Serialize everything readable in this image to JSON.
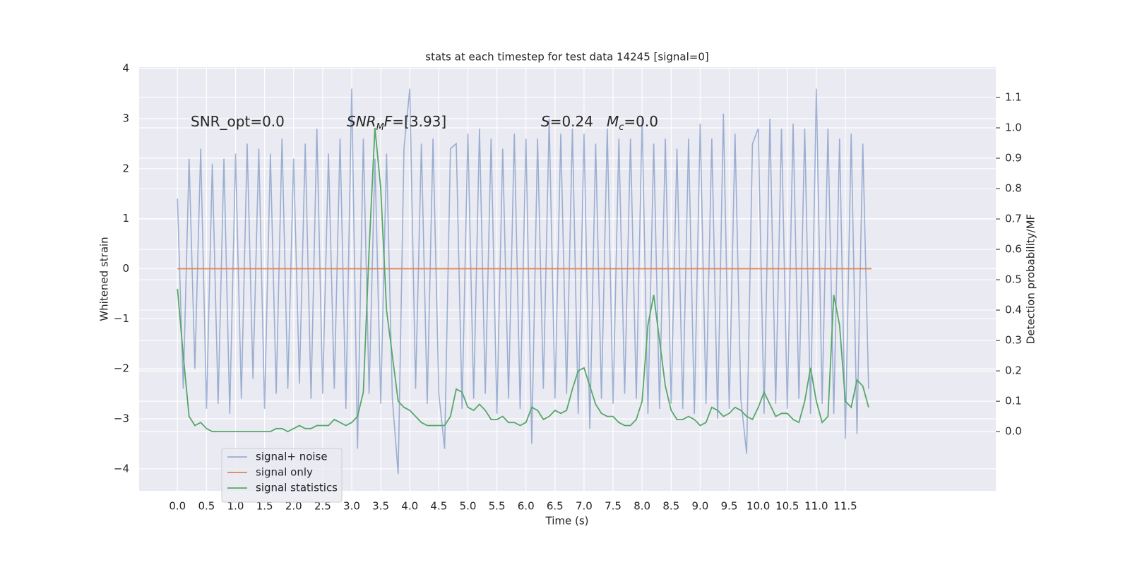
{
  "chart_data": {
    "type": "line",
    "title": "stats at each timestep for test data 14245 [signal=0]",
    "x_label": "Time (s)",
    "y_label": "Whitened strain",
    "y2_label": "Detection probability/MF",
    "annotations": [
      {
        "parts": [
          {
            "text": "SNR_opt=0.0"
          }
        ]
      },
      {
        "parts": [
          {
            "text": "SNR",
            "italic": true
          },
          {
            "text": "M",
            "italic": true,
            "sub": true
          },
          {
            "text": "F",
            "italic": true
          },
          {
            "text": "=[3.93]"
          }
        ]
      },
      {
        "parts": [
          {
            "text": "S",
            "italic": true
          },
          {
            "text": "=0.24"
          }
        ]
      },
      {
        "parts": [
          {
            "text": "M",
            "italic": true
          },
          {
            "text": "c",
            "italic": true,
            "sub": true
          },
          {
            "text": "=0.0"
          }
        ]
      }
    ],
    "xlim": [
      -0.66,
      14.09
    ],
    "ylim": [
      -4.44,
      4.03
    ],
    "y2lim": [
      -0.195,
      1.2
    ],
    "xticks": [
      {
        "value": 0,
        "label": "0.0"
      },
      {
        "value": 0.5,
        "label": "0.5"
      },
      {
        "value": 1,
        "label": "1.0"
      },
      {
        "value": 1.5,
        "label": "1.5"
      },
      {
        "value": 2,
        "label": "2.0"
      },
      {
        "value": 2.5,
        "label": "2.5"
      },
      {
        "value": 3,
        "label": "3.0"
      },
      {
        "value": 3.5,
        "label": "3.5"
      },
      {
        "value": 4,
        "label": "4.0"
      },
      {
        "value": 4.5,
        "label": "4.5"
      },
      {
        "value": 5,
        "label": "5.0"
      },
      {
        "value": 5.5,
        "label": "5.5"
      },
      {
        "value": 6,
        "label": "6.0"
      },
      {
        "value": 6.5,
        "label": "6.5"
      },
      {
        "value": 7,
        "label": "7.0"
      },
      {
        "value": 7.5,
        "label": "7.5"
      },
      {
        "value": 8,
        "label": "8.0"
      },
      {
        "value": 8.5,
        "label": "8.5"
      },
      {
        "value": 9,
        "label": "9.0"
      },
      {
        "value": 9.5,
        "label": "9.5"
      },
      {
        "value": 10,
        "label": "10.0"
      },
      {
        "value": 10.5,
        "label": "10.5"
      },
      {
        "value": 11,
        "label": "11.0"
      },
      {
        "value": 11.5,
        "label": "11.5"
      }
    ],
    "yticks": [
      {
        "value": -4,
        "label": "−4"
      },
      {
        "value": -3,
        "label": "−3"
      },
      {
        "value": -2,
        "label": "−2"
      },
      {
        "value": -1,
        "label": "−1"
      },
      0,
      1,
      2,
      3,
      4
    ],
    "y2ticks": [
      {
        "value": 0,
        "label": "0.0"
      },
      {
        "value": 0.1,
        "label": "0.1"
      },
      {
        "value": 0.2,
        "label": "0.2"
      },
      {
        "value": 0.3,
        "label": "0.3"
      },
      {
        "value": 0.4,
        "label": "0.4"
      },
      {
        "value": 0.5,
        "label": "0.5"
      },
      {
        "value": 0.6,
        "label": "0.6"
      },
      {
        "value": 0.7,
        "label": "0.7"
      },
      {
        "value": 0.8,
        "label": "0.8"
      },
      {
        "value": 0.9,
        "label": "0.9"
      },
      {
        "value": 1,
        "label": "1.0"
      },
      {
        "value": 1.1,
        "label": "1.1"
      }
    ],
    "grid": true,
    "legend": "lower left",
    "series": [
      {
        "name": "signal+ noise",
        "color": "#4c72b0",
        "opacity": 0.5,
        "x": [
          0,
          0.1,
          0.2,
          0.3,
          0.4,
          0.5,
          0.6,
          0.7,
          0.8,
          0.9,
          1,
          1.1,
          1.2,
          1.3,
          1.4,
          1.5,
          1.6,
          1.7,
          1.8,
          1.9,
          2,
          2.1,
          2.2,
          2.3,
          2.4,
          2.5,
          2.6,
          2.7,
          2.8,
          2.9,
          3,
          3.1,
          3.2,
          3.3,
          3.4,
          3.5,
          3.6,
          3.7,
          3.8,
          3.9,
          4,
          4.1,
          4.2,
          4.3,
          4.4,
          4.5,
          4.6,
          4.7,
          4.8,
          4.9,
          5,
          5.1,
          5.2,
          5.3,
          5.4,
          5.5,
          5.6,
          5.7,
          5.8,
          5.9,
          6,
          6.1,
          6.2,
          6.3,
          6.4,
          6.5,
          6.6,
          6.7,
          6.8,
          6.9,
          7,
          7.1,
          7.2,
          7.3,
          7.4,
          7.5,
          7.6,
          7.7,
          7.8,
          7.9,
          8,
          8.1,
          8.2,
          8.3,
          8.4,
          8.5,
          8.6,
          8.7,
          8.8,
          8.9,
          9,
          9.1,
          9.2,
          9.3,
          9.4,
          9.5,
          9.6,
          9.7,
          9.8,
          9.9,
          10,
          10.1,
          10.2,
          10.3,
          10.4,
          10.5,
          10.6,
          10.7,
          10.8,
          10.9,
          11,
          11.1,
          11.2,
          11.3,
          11.4,
          11.5,
          11.6,
          11.7,
          11.8,
          11.9
        ],
        "values": [
          1.4,
          -2.4,
          2.2,
          -2.0,
          2.4,
          -2.8,
          2.1,
          -2.7,
          2.2,
          -2.9,
          2.3,
          -2.6,
          2.5,
          -2.2,
          2.4,
          -2.8,
          2.3,
          -2.5,
          2.6,
          -2.4,
          2.2,
          -2.3,
          2.5,
          -2.6,
          2.8,
          -2.5,
          2.3,
          -2.4,
          2.6,
          -2.8,
          3.6,
          -3.6,
          2.6,
          -2.5,
          2.2,
          -2.7,
          2.3,
          -2.6,
          -4.1,
          2.4,
          3.6,
          -2.4,
          2.5,
          -2.7,
          2.6,
          -2.5,
          -3.6,
          2.4,
          2.5,
          -2.8,
          2.7,
          -2.6,
          2.8,
          -2.5,
          2.6,
          -2.9,
          2.4,
          -2.6,
          2.7,
          -2.8,
          2.6,
          -3.5,
          2.6,
          -2.4,
          3.0,
          -2.6,
          2.7,
          -2.5,
          2.8,
          -2.9,
          2.7,
          -3.2,
          2.5,
          -2.6,
          2.8,
          -2.7,
          2.6,
          -2.5,
          2.6,
          -2.6,
          3.0,
          -2.9,
          2.5,
          -2.8,
          2.6,
          -2.7,
          2.4,
          -2.8,
          2.6,
          -2.9,
          2.9,
          -2.7,
          2.6,
          -3.0,
          3.1,
          -2.8,
          2.7,
          -2.6,
          -3.7,
          2.5,
          2.8,
          -2.9,
          3.0,
          -2.7,
          2.8,
          -2.8,
          2.9,
          -2.6,
          2.8,
          -2.9,
          3.6,
          -2.7,
          2.8,
          -2.9,
          2.6,
          -3.4,
          2.7,
          -3.3,
          2.5,
          -2.4
        ]
      },
      {
        "name": "signal only",
        "color": "#dd8452",
        "x": [
          0,
          11.95
        ],
        "values": [
          0,
          0
        ]
      },
      {
        "name": "signal statistics",
        "color": "#55a868",
        "axis": "y2",
        "x": [
          0,
          0.1,
          0.2,
          0.3,
          0.4,
          0.5,
          0.6,
          0.7,
          0.8,
          0.9,
          1,
          1.1,
          1.2,
          1.3,
          1.4,
          1.5,
          1.6,
          1.7,
          1.8,
          1.9,
          2,
          2.1,
          2.2,
          2.3,
          2.4,
          2.5,
          2.6,
          2.7,
          2.8,
          2.9,
          3,
          3.1,
          3.2,
          3.3,
          3.4,
          3.5,
          3.6,
          3.7,
          3.8,
          3.9,
          4,
          4.1,
          4.2,
          4.3,
          4.4,
          4.5,
          4.6,
          4.7,
          4.8,
          4.9,
          5,
          5.1,
          5.2,
          5.3,
          5.4,
          5.5,
          5.6,
          5.7,
          5.8,
          5.9,
          6,
          6.1,
          6.2,
          6.3,
          6.4,
          6.5,
          6.6,
          6.7,
          6.8,
          6.9,
          7,
          7.1,
          7.2,
          7.3,
          7.4,
          7.5,
          7.6,
          7.7,
          7.8,
          7.9,
          8,
          8.1,
          8.2,
          8.3,
          8.4,
          8.5,
          8.6,
          8.7,
          8.8,
          8.9,
          9,
          9.1,
          9.2,
          9.3,
          9.4,
          9.5,
          9.6,
          9.7,
          9.8,
          9.9,
          10,
          10.1,
          10.2,
          10.3,
          10.4,
          10.5,
          10.6,
          10.7,
          10.8,
          10.9,
          11,
          11.1,
          11.2,
          11.3,
          11.4,
          11.5,
          11.6,
          11.7,
          11.8,
          11.9
        ],
        "values": [
          0.47,
          0.25,
          0.05,
          0.02,
          0.03,
          0.01,
          0,
          0,
          0,
          0,
          0,
          0,
          0,
          0,
          0,
          0,
          0,
          0.01,
          0.01,
          0,
          0.01,
          0.02,
          0.01,
          0.01,
          0.02,
          0.02,
          0.02,
          0.04,
          0.03,
          0.02,
          0.03,
          0.05,
          0.13,
          0.6,
          1.0,
          0.8,
          0.4,
          0.25,
          0.1,
          0.08,
          0.07,
          0.05,
          0.03,
          0.02,
          0.02,
          0.02,
          0.02,
          0.05,
          0.14,
          0.13,
          0.08,
          0.07,
          0.09,
          0.07,
          0.04,
          0.04,
          0.05,
          0.03,
          0.03,
          0.02,
          0.03,
          0.08,
          0.07,
          0.04,
          0.05,
          0.07,
          0.06,
          0.07,
          0.14,
          0.2,
          0.21,
          0.15,
          0.09,
          0.06,
          0.05,
          0.05,
          0.03,
          0.02,
          0.02,
          0.04,
          0.1,
          0.35,
          0.45,
          0.3,
          0.15,
          0.07,
          0.04,
          0.04,
          0.05,
          0.04,
          0.02,
          0.03,
          0.08,
          0.07,
          0.05,
          0.06,
          0.08,
          0.07,
          0.05,
          0.04,
          0.08,
          0.13,
          0.09,
          0.05,
          0.06,
          0.06,
          0.04,
          0.03,
          0.1,
          0.21,
          0.1,
          0.03,
          0.05,
          0.45,
          0.35,
          0.1,
          0.08,
          0.17,
          0.15,
          0.08
        ]
      }
    ]
  }
}
